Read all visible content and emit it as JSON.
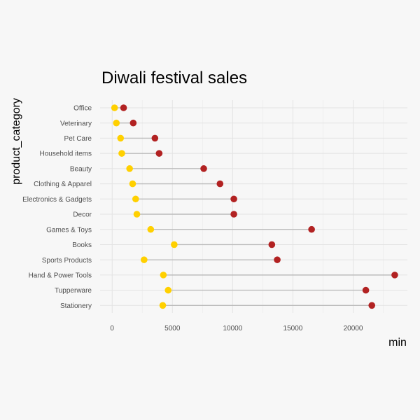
{
  "chart_data": {
    "type": "dumbbell",
    "title": "Diwali festival sales",
    "xlabel": "min",
    "ylabel": "product_category",
    "xlim": [
      -1000,
      24500
    ],
    "xticks": [
      0,
      5000,
      10000,
      15000,
      20000
    ],
    "categories": [
      "Office",
      "Veterinary",
      "Pet Care",
      "Household items",
      "Beauty",
      "Clothing & Apparel",
      "Electronics & Gadgets",
      "Decor",
      "Games & Toys",
      "Books",
      "Sports Products",
      "Hand & Power Tools",
      "Tupperware",
      "Stationery"
    ],
    "series": [
      {
        "color": "#ffd000",
        "values": [
          200,
          350,
          700,
          800,
          1450,
          1700,
          1950,
          2050,
          3200,
          5150,
          2650,
          4250,
          4650,
          4200
        ]
      },
      {
        "color": "#b22222",
        "values": [
          950,
          1750,
          3550,
          3900,
          7600,
          8950,
          10100,
          10100,
          16550,
          13250,
          13700,
          23450,
          21050,
          21550
        ]
      }
    ],
    "grid": true
  }
}
